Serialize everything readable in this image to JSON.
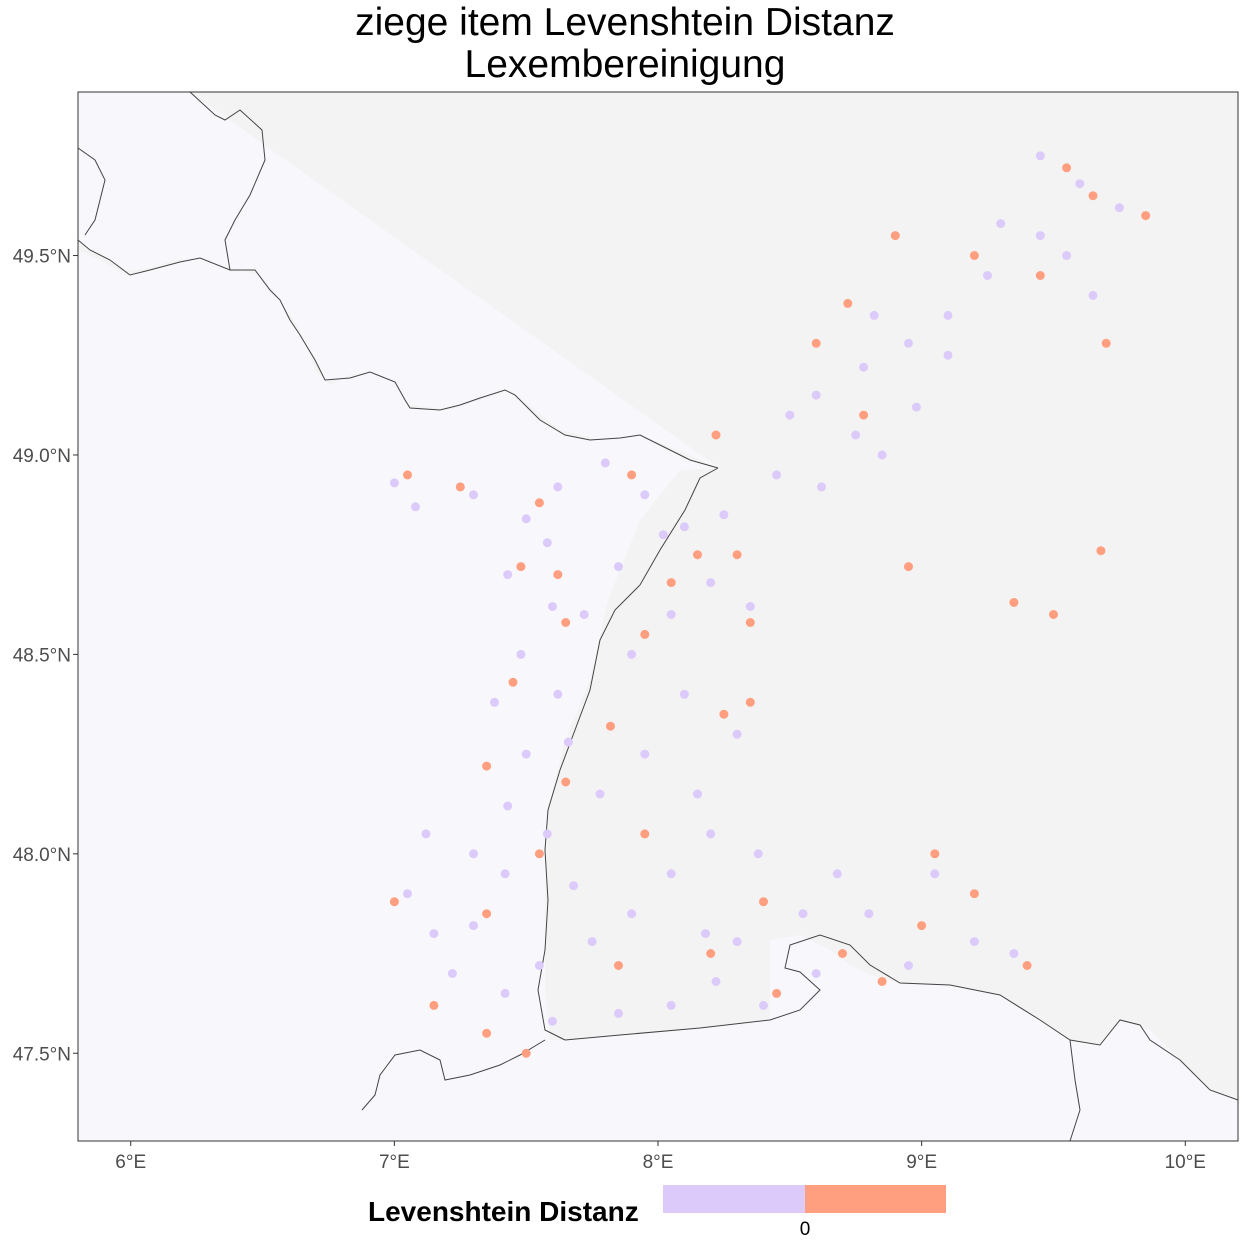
{
  "title": {
    "line1": "ziege item Levenshtein Distanz",
    "line2": "Lexembereinigung"
  },
  "map": {
    "lon_range": [
      5.8,
      10.2
    ],
    "lat_range": [
      47.28,
      49.91
    ],
    "lon_ticks": [
      6,
      7,
      8,
      9,
      10
    ],
    "lon_tick_labels": [
      "6°E",
      "7°E",
      "8°E",
      "9°E",
      "10°E"
    ],
    "lat_ticks": [
      47.5,
      48.0,
      48.5,
      49.0,
      49.5
    ],
    "lat_tick_labels": [
      "47.5°N",
      "48.0°N",
      "48.5°N",
      "49.0°N",
      "49.5°N"
    ],
    "colors": {
      "panel_background": "#f8f8fc",
      "region_fill": "#f3f3f3",
      "border": "#444444",
      "level_0": "#dccbfa",
      "level_1": "#ff9f80"
    }
  },
  "legend": {
    "title": "Levenshtein Distanz",
    "tick_label": "0",
    "colors": [
      "#dccbfa",
      "#ff9f80"
    ]
  },
  "chart_data": {
    "type": "scatter",
    "title": "ziege item Levenshtein Distanz Lexembereinigung",
    "xlim": [
      5.8,
      10.2
    ],
    "ylim": [
      47.28,
      49.91
    ],
    "legend": "Levenshtein Distanz",
    "legend_placement": "bottom",
    "series": [
      {
        "values": [
          [
            7.0,
            48.93
          ],
          [
            7.08,
            48.87
          ],
          [
            7.3,
            48.9
          ],
          [
            7.5,
            48.84
          ],
          [
            7.62,
            48.92
          ],
          [
            7.8,
            48.98
          ],
          [
            7.95,
            48.9
          ],
          [
            8.1,
            48.82
          ],
          [
            7.43,
            48.7
          ],
          [
            7.6,
            48.62
          ],
          [
            7.48,
            48.5
          ],
          [
            7.62,
            48.4
          ],
          [
            7.38,
            48.38
          ],
          [
            7.5,
            48.25
          ],
          [
            7.66,
            48.28
          ],
          [
            7.43,
            48.12
          ],
          [
            7.58,
            48.05
          ],
          [
            7.42,
            47.95
          ],
          [
            7.3,
            47.82
          ],
          [
            7.15,
            47.8
          ],
          [
            7.05,
            47.9
          ],
          [
            7.22,
            47.7
          ],
          [
            7.42,
            47.65
          ],
          [
            7.6,
            47.58
          ],
          [
            7.85,
            47.6
          ],
          [
            8.05,
            47.62
          ],
          [
            8.22,
            47.68
          ],
          [
            8.4,
            47.62
          ],
          [
            8.6,
            47.7
          ],
          [
            7.75,
            47.78
          ],
          [
            7.9,
            47.85
          ],
          [
            8.05,
            47.95
          ],
          [
            8.2,
            48.05
          ],
          [
            8.38,
            48.0
          ],
          [
            8.55,
            47.85
          ],
          [
            8.68,
            47.95
          ],
          [
            7.78,
            48.15
          ],
          [
            7.95,
            48.25
          ],
          [
            8.1,
            48.4
          ],
          [
            7.9,
            48.5
          ],
          [
            8.05,
            48.6
          ],
          [
            7.85,
            48.72
          ],
          [
            8.02,
            48.8
          ],
          [
            8.2,
            48.68
          ],
          [
            8.35,
            48.62
          ],
          [
            8.25,
            48.85
          ],
          [
            8.45,
            48.95
          ],
          [
            8.62,
            48.92
          ],
          [
            8.75,
            49.05
          ],
          [
            8.6,
            49.15
          ],
          [
            8.78,
            49.22
          ],
          [
            8.95,
            49.28
          ],
          [
            9.1,
            49.35
          ],
          [
            9.25,
            49.45
          ],
          [
            9.45,
            49.55
          ],
          [
            9.6,
            49.68
          ],
          [
            9.75,
            49.62
          ],
          [
            9.45,
            49.75
          ],
          [
            9.1,
            49.25
          ],
          [
            8.85,
            49.0
          ],
          [
            8.98,
            49.12
          ],
          [
            9.2,
            47.78
          ],
          [
            8.95,
            47.72
          ],
          [
            9.35,
            47.75
          ],
          [
            8.8,
            47.85
          ],
          [
            9.05,
            47.95
          ],
          [
            8.3,
            47.78
          ],
          [
            7.55,
            47.72
          ],
          [
            7.3,
            48.0
          ],
          [
            7.12,
            48.05
          ],
          [
            8.3,
            48.3
          ],
          [
            8.15,
            48.15
          ],
          [
            7.72,
            48.6
          ],
          [
            7.58,
            48.78
          ],
          [
            8.5,
            49.1
          ],
          [
            8.82,
            49.35
          ],
          [
            9.3,
            49.58
          ],
          [
            9.65,
            49.4
          ],
          [
            9.55,
            49.5
          ],
          [
            8.18,
            47.8
          ],
          [
            7.68,
            47.92
          ]
        ]
      },
      {
        "values": [
          [
            7.05,
            48.95
          ],
          [
            7.25,
            48.92
          ],
          [
            7.55,
            48.88
          ],
          [
            7.9,
            48.95
          ],
          [
            8.15,
            48.75
          ],
          [
            7.48,
            48.72
          ],
          [
            7.65,
            48.58
          ],
          [
            7.45,
            48.43
          ],
          [
            7.35,
            48.22
          ],
          [
            7.55,
            48.0
          ],
          [
            7.35,
            47.85
          ],
          [
            7.0,
            47.88
          ],
          [
            7.15,
            47.62
          ],
          [
            7.35,
            47.55
          ],
          [
            7.5,
            47.5
          ],
          [
            7.85,
            47.72
          ],
          [
            8.2,
            47.75
          ],
          [
            8.45,
            47.65
          ],
          [
            8.7,
            47.75
          ],
          [
            8.85,
            47.68
          ],
          [
            9.0,
            47.82
          ],
          [
            9.2,
            47.9
          ],
          [
            9.4,
            47.72
          ],
          [
            9.05,
            48.0
          ],
          [
            8.25,
            48.35
          ],
          [
            8.05,
            48.68
          ],
          [
            8.3,
            48.75
          ],
          [
            8.35,
            48.58
          ],
          [
            7.95,
            48.55
          ],
          [
            8.6,
            49.28
          ],
          [
            8.72,
            49.38
          ],
          [
            8.9,
            49.55
          ],
          [
            9.2,
            49.5
          ],
          [
            9.45,
            49.45
          ],
          [
            9.65,
            49.65
          ],
          [
            9.85,
            49.6
          ],
          [
            9.55,
            49.72
          ],
          [
            9.7,
            49.28
          ],
          [
            8.78,
            49.1
          ],
          [
            8.95,
            48.72
          ],
          [
            9.35,
            48.63
          ],
          [
            9.68,
            48.76
          ],
          [
            9.5,
            48.6
          ],
          [
            8.35,
            48.38
          ],
          [
            7.82,
            48.32
          ],
          [
            7.65,
            48.18
          ],
          [
            7.95,
            48.05
          ],
          [
            8.4,
            47.88
          ],
          [
            7.62,
            48.7
          ],
          [
            8.22,
            49.05
          ]
        ]
      }
    ]
  }
}
